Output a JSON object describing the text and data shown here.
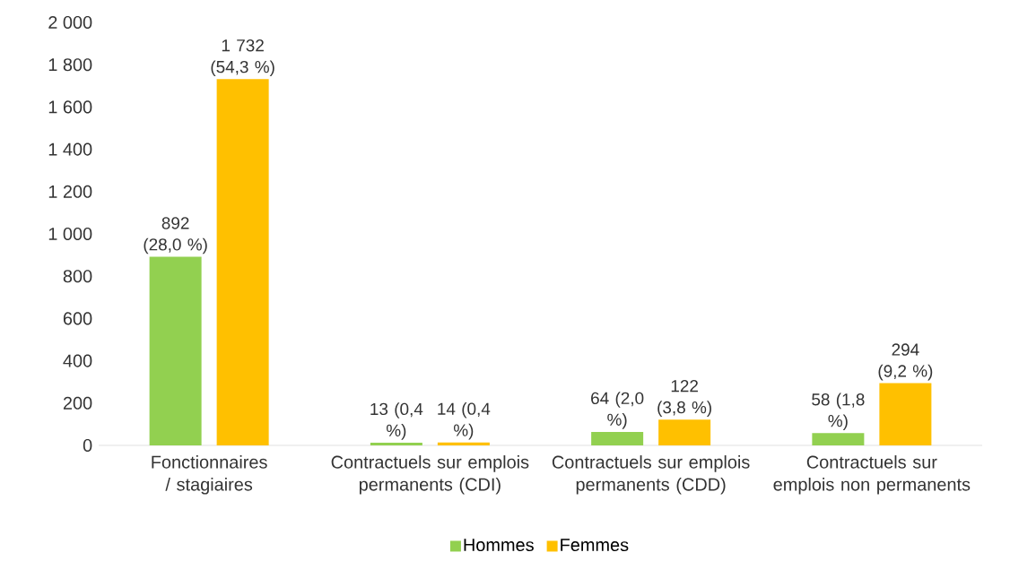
{
  "chart_data": {
    "type": "bar",
    "categories": [
      "Fonctionnaires / stagiaires",
      "Contractuels sur emplois permanents (CDI)",
      "Contractuels sur emplois permanents (CDD)",
      "Contractuels sur emplois non permanents"
    ],
    "series": [
      {
        "name": "Hommes",
        "color": "#92d050",
        "values": [
          892,
          13,
          64,
          58
        ],
        "value_labels": [
          "892 (28,0 %)",
          "13 (0,4 %)",
          "64 (2,0 %)",
          "58 (1,8 %)"
        ]
      },
      {
        "name": "Femmes",
        "color": "#ffc000",
        "values": [
          1732,
          14,
          122,
          294
        ],
        "value_labels": [
          "1 732 (54,3 %)",
          "14 (0,4 %)",
          "122 (3,8 %)",
          "294 (9,2 %)"
        ]
      }
    ],
    "ylim": [
      0,
      2000
    ],
    "yticks": [
      {
        "value": 0,
        "label": "0"
      },
      {
        "value": 200,
        "label": "200"
      },
      {
        "value": 400,
        "label": "400"
      },
      {
        "value": 600,
        "label": "600"
      },
      {
        "value": 800,
        "label": "800"
      },
      {
        "value": 1000,
        "label": "1 000"
      },
      {
        "value": 1200,
        "label": "1 200"
      },
      {
        "value": 1400,
        "label": "1 400"
      },
      {
        "value": 1600,
        "label": "1 600"
      },
      {
        "value": 1800,
        "label": "1 800"
      },
      {
        "value": 2000,
        "label": "2 000"
      }
    ],
    "legend": "bottom"
  }
}
